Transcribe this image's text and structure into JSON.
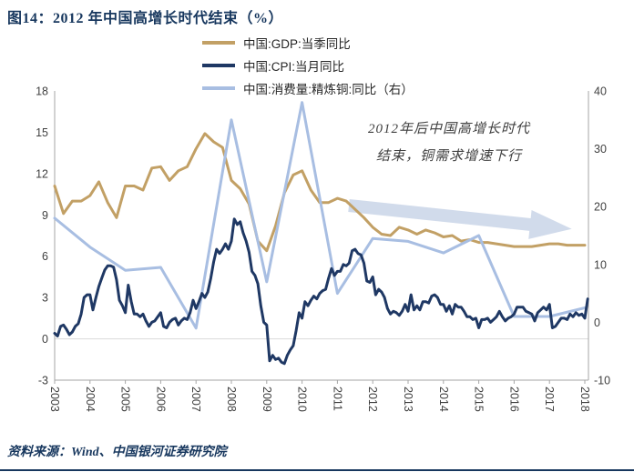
{
  "title": "图14：2012 年中国高增长时代结束（%）",
  "source": "资料来源：Wind、中国银河证券研究院",
  "annotation": {
    "line1": "2012年后中国高增长时代",
    "line2": "结束，铜需求增速下行"
  },
  "legend": [
    {
      "label": "中国:GDP:当季同比",
      "color": "#C2A065"
    },
    {
      "label": "中国:CPI:当月同比",
      "color": "#1F3864"
    },
    {
      "label": "中国:消费量:精炼铜:同比（右）",
      "color": "#A8BEE2"
    }
  ],
  "colors": {
    "title_navy": "#17375E",
    "axis_line": "#A6A6A6",
    "axis_text": "#404040",
    "zero_gridline": "#D9D9D9",
    "arrow_fill": "#C9D5E8"
  },
  "chart_data": {
    "type": "line",
    "title": "2012 年中国高增长时代结束（%）",
    "xlabel": "",
    "ylabel_left": "%",
    "ylabel_right": "%",
    "grid": false,
    "legend_position": "top",
    "x_ticks": [
      "2003",
      "2004",
      "2005",
      "2006",
      "2007",
      "2008",
      "2009",
      "2010",
      "2011",
      "2012",
      "2013",
      "2014",
      "2015",
      "2016",
      "2017",
      "2018"
    ],
    "left_axis": {
      "min": -3,
      "max": 18,
      "ticks": [
        18,
        15,
        12,
        9,
        6,
        3,
        0,
        -3
      ]
    },
    "right_axis": {
      "min": -10,
      "max": 40,
      "ticks": [
        40,
        30,
        20,
        10,
        0,
        -10
      ]
    },
    "series": [
      {
        "id": "gdp",
        "name": "中国:GDP:当季同比",
        "axis": "left",
        "color": "#C2A065",
        "freq": "quarterly",
        "start": 2003.0,
        "step": 0.25,
        "values": [
          11.1,
          9.1,
          10.0,
          10.0,
          10.4,
          11.4,
          9.9,
          8.8,
          11.1,
          11.1,
          10.8,
          12.4,
          12.5,
          11.5,
          12.2,
          12.5,
          13.8,
          14.9,
          14.3,
          13.9,
          11.5,
          10.9,
          9.8,
          7.1,
          6.4,
          8.2,
          10.6,
          11.9,
          12.2,
          10.8,
          9.9,
          9.9,
          10.2,
          10.0,
          9.4,
          8.8,
          8.1,
          7.6,
          7.5,
          8.1,
          7.9,
          7.6,
          7.9,
          7.7,
          7.4,
          7.5,
          7.1,
          7.2,
          7.0,
          7.0,
          6.9,
          6.8,
          6.7,
          6.7,
          6.7,
          6.8,
          6.9,
          6.9,
          6.8,
          6.8,
          6.8
        ]
      },
      {
        "id": "copper",
        "name": "中国:消费量:精炼铜:同比（右）",
        "axis": "right",
        "color": "#A8BEE2",
        "freq": "yearly",
        "start": 2003,
        "step": 1,
        "values": [
          18,
          13,
          9,
          9.5,
          -1,
          35,
          7,
          38,
          5,
          14.5,
          14,
          12,
          15,
          1,
          1,
          2.5
        ]
      },
      {
        "id": "cpi",
        "name": "中国:CPI:当月同比",
        "axis": "left",
        "color": "#1F3864",
        "freq": "monthly",
        "start": 2003.0,
        "step": 0.0833333,
        "values": [
          0.4,
          0.2,
          0.9,
          1.0,
          0.7,
          0.3,
          0.5,
          0.9,
          1.1,
          1.8,
          3.0,
          3.2,
          3.2,
          2.1,
          3.0,
          3.8,
          4.4,
          5.0,
          5.3,
          5.3,
          5.2,
          4.3,
          2.8,
          2.4,
          1.9,
          3.9,
          2.7,
          1.8,
          1.8,
          1.6,
          1.8,
          1.3,
          0.9,
          1.2,
          1.3,
          1.6,
          1.9,
          0.9,
          0.8,
          1.2,
          1.4,
          1.5,
          1.0,
          1.3,
          1.5,
          1.4,
          1.9,
          2.8,
          2.2,
          2.7,
          3.3,
          3.0,
          3.4,
          4.4,
          5.6,
          6.5,
          6.2,
          6.5,
          6.9,
          6.5,
          7.1,
          8.7,
          8.3,
          8.5,
          7.7,
          7.1,
          6.3,
          4.9,
          4.6,
          4.0,
          2.4,
          1.2,
          1.0,
          -1.6,
          -1.2,
          -1.5,
          -1.4,
          -1.7,
          -1.8,
          -1.2,
          -0.8,
          -0.5,
          0.6,
          1.9,
          1.5,
          2.7,
          2.4,
          2.8,
          3.1,
          2.9,
          3.3,
          3.5,
          3.6,
          4.4,
          5.1,
          4.6,
          4.9,
          4.9,
          5.4,
          5.3,
          5.5,
          6.4,
          6.5,
          6.2,
          6.1,
          5.5,
          4.2,
          4.1,
          4.5,
          3.2,
          3.6,
          3.4,
          3.0,
          2.2,
          1.8,
          2.0,
          1.9,
          1.7,
          2.0,
          2.5,
          2.0,
          3.2,
          2.1,
          2.4,
          2.1,
          2.7,
          2.7,
          2.6,
          3.1,
          3.2,
          3.0,
          2.5,
          2.5,
          2.0,
          2.4,
          1.8,
          2.5,
          2.3,
          2.3,
          2.0,
          1.6,
          1.6,
          1.4,
          1.5,
          0.8,
          1.4,
          1.4,
          1.5,
          1.2,
          1.4,
          1.6,
          2.0,
          1.6,
          1.3,
          1.5,
          1.6,
          1.8,
          2.3,
          2.3,
          2.3,
          2.0,
          1.9,
          1.8,
          1.3,
          1.9,
          2.1,
          2.3,
          2.1,
          2.5,
          0.8,
          0.9,
          1.2,
          1.5,
          1.5,
          1.4,
          1.8,
          1.6,
          1.9,
          1.7,
          1.8,
          1.5,
          2.9
        ]
      }
    ],
    "annotations": [
      {
        "text": "2012年后中国高增长时代 结束，铜需求增速下行",
        "type": "text-with-arrow",
        "arrow_direction": "down-right"
      }
    ]
  }
}
